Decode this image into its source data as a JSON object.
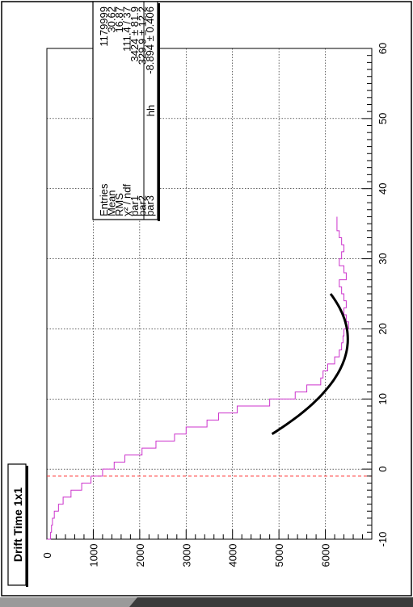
{
  "title": "Drift Time 1x1",
  "stats": {
    "name": "hh",
    "rows": [
      {
        "label": "Entries",
        "value": "1179999"
      },
      {
        "label": "Mean",
        "value": "30.62"
      },
      {
        "label": "RMS",
        "value": "16.87"
      },
      {
        "label": "χ² / ndf",
        "value": "111.4 / 37"
      },
      {
        "label": "par1",
        "value": "3424 ± 81.9"
      },
      {
        "label": "par2",
        "value": "329.9 ± 12.2"
      },
      {
        "label": "par3",
        "value": "-8.894 ± 0.406"
      }
    ]
  },
  "chart_data": {
    "type": "histogram",
    "xlim": [
      -10,
      60
    ],
    "ylim": [
      0,
      7000
    ],
    "x_ticks": [
      -10,
      0,
      10,
      20,
      30,
      40,
      50,
      60
    ],
    "y_ticks": [
      0,
      1000,
      2000,
      3000,
      4000,
      5000,
      6000
    ],
    "grid": true,
    "bin_width": 1,
    "bin_start": -10,
    "histogram_values": [
      80,
      100,
      120,
      160,
      250,
      350,
      520,
      750,
      950,
      1200,
      1450,
      1680,
      2050,
      2350,
      2750,
      3000,
      3450,
      3700,
      4100,
      4800,
      5350,
      5600,
      5900,
      5950,
      6050,
      6200,
      6300,
      6350,
      6380,
      6400,
      6500,
      6450,
      6400,
      6450,
      6400,
      6350,
      6300,
      6450,
      6400,
      6300,
      6350,
      6400,
      6350,
      6300,
      6250,
      6250
    ],
    "histogram_color": "#cc33cc",
    "fit": {
      "x_range": [
        5,
        25
      ],
      "parameters": {
        "par1": 3424,
        "par2": 329.9,
        "par3": -8.894
      },
      "color": "#000000"
    },
    "marker_line": {
      "x": -1,
      "color": "#ff3333",
      "style": "dashed"
    }
  }
}
